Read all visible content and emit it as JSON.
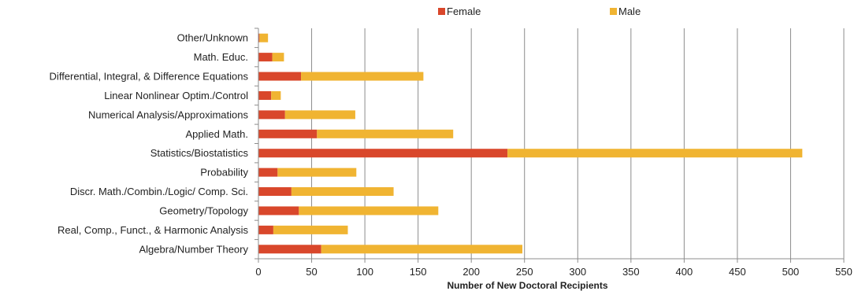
{
  "chart_data": {
    "type": "bar",
    "orientation": "horizontal",
    "stacked": true,
    "title": "",
    "xlabel": "Number of New Doctoral Recipients",
    "ylabel": "",
    "xlim": [
      0,
      550
    ],
    "x_ticks": [
      0,
      50,
      100,
      150,
      200,
      250,
      300,
      350,
      400,
      450,
      500,
      550
    ],
    "grid": "vertical",
    "legend_position": "top",
    "categories": [
      "Other/Unknown",
      "Math. Educ.",
      "Differential, Integral, & Difference Equations",
      "Linear Nonlinear Optim./Control",
      "Numerical Analysis/Approximations",
      "Applied Math.",
      "Statistics/Biostatistics",
      "Probability",
      "Discr. Math./Combin./Logic/ Comp. Sci.",
      "Geometry/Topology",
      "Real, Comp., Funct., & Harmonic Analysis",
      "Algebra/Number Theory"
    ],
    "series": [
      {
        "name": "Female",
        "color": "#d9472b",
        "values": [
          1,
          13,
          40,
          12,
          25,
          55,
          234,
          18,
          31,
          38,
          14,
          59
        ]
      },
      {
        "name": "Male",
        "color": "#f0b432",
        "values": [
          8,
          11,
          115,
          9,
          66,
          128,
          277,
          74,
          96,
          131,
          70,
          189
        ]
      }
    ]
  }
}
